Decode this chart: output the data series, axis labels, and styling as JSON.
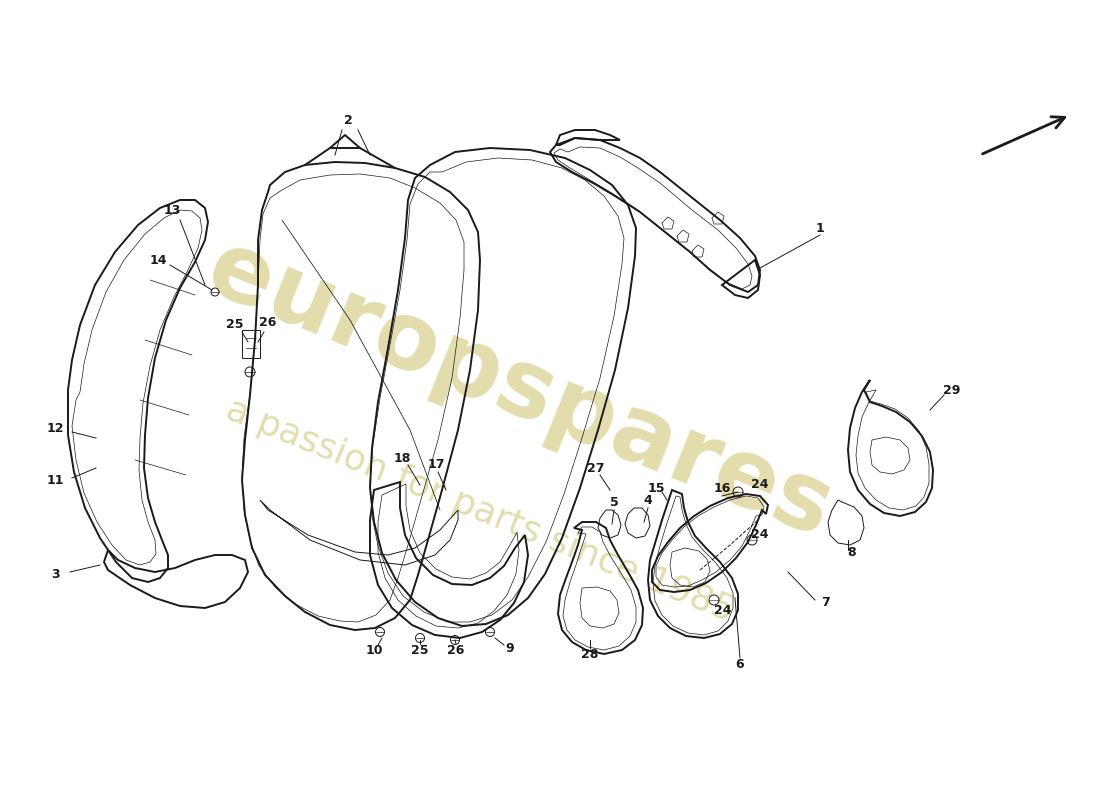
{
  "background_color": "#ffffff",
  "watermark_text1": "europspares",
  "watermark_text2": "a passion for parts since 1985",
  "watermark_color": "#c8ba5a",
  "text_color": "#1a1a1a",
  "line_color": "#1a1a1a",
  "lw_main": 1.4,
  "lw_thin": 0.7,
  "lw_inner": 0.5,
  "figsize": [
    11.0,
    8.0
  ],
  "dpi": 100
}
